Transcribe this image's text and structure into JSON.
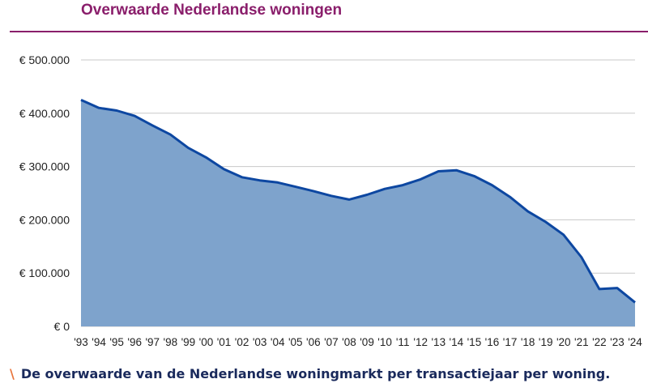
{
  "chart_data": {
    "type": "area",
    "title": "Overwaarde Nederlandse woningen",
    "x": [
      "'93",
      "'94",
      "'95",
      "'96",
      "'97",
      "'98",
      "'99",
      "'00",
      "'01",
      "'02",
      "'03",
      "'04",
      "'05",
      "'06",
      "'07",
      "'08",
      "'09",
      "'10",
      "'11",
      "'12",
      "'13",
      "'14",
      "'15",
      "'16",
      "'17",
      "'18",
      "'19",
      "'20",
      "'21",
      "'22",
      "'23",
      "'24"
    ],
    "series": [
      {
        "values": [
          425000,
          410000,
          405000,
          395000,
          377000,
          360000,
          335000,
          317000,
          295000,
          280000,
          274000,
          270000,
          262000,
          254000,
          245000,
          238000,
          247000,
          258000,
          265000,
          276000,
          291000,
          293000,
          282000,
          265000,
          243000,
          216000,
          196000,
          172000,
          130000,
          70000,
          72000,
          45000
        ]
      }
    ],
    "ylim": [
      0,
      500000
    ],
    "yticks": [
      0,
      100000,
      200000,
      300000,
      400000,
      500000
    ],
    "ytick_labels": [
      "€ 0",
      "€ 100.000",
      "€ 200.000",
      "€ 300.000",
      "€ 400.000",
      "€ 500.000"
    ],
    "grid": true,
    "colors": {
      "fill": "#7ea3cc",
      "line": "#0d47a1",
      "grid": "#c8c8c8",
      "title": "#8a1e6b"
    }
  },
  "caption": {
    "marker": "\\",
    "text": "De overwaarde van de Nederlandse woningmarkt per transactiejaar per woning."
  }
}
